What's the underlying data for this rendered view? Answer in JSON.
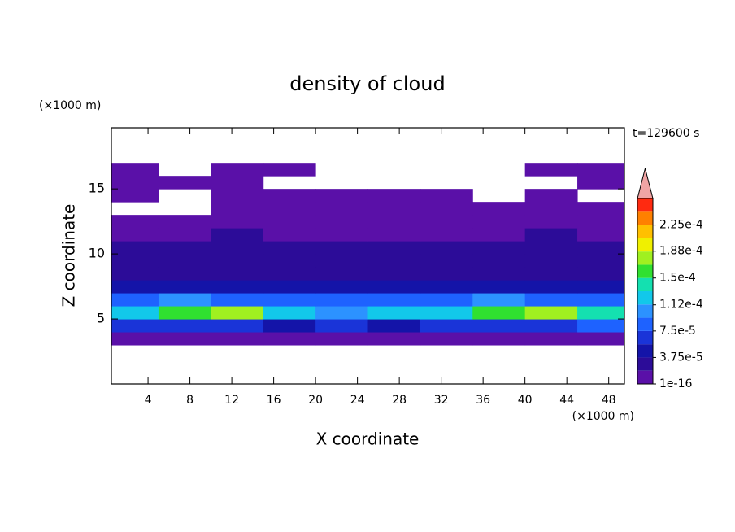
{
  "chart_data": {
    "type": "contour",
    "title": "density of cloud",
    "x_label": "X coordinate",
    "y_label": "Z coordinate",
    "x_unit": "(×1000 m)",
    "y_unit": "(×1000 m)",
    "annotation": "t=129600 s",
    "xlim": [
      0.5,
      49.5
    ],
    "xticks": [
      4,
      8,
      12,
      16,
      20,
      24,
      28,
      32,
      36,
      40,
      44,
      48
    ],
    "ylim": [
      0,
      19.7
    ],
    "yticks": [
      5,
      10,
      15
    ],
    "x_edges": [
      0,
      5,
      10,
      15,
      20,
      25,
      30,
      35,
      40,
      45,
      50
    ],
    "z_edges": [
      3,
      4,
      5,
      6,
      7,
      8,
      9,
      10,
      11,
      12,
      13,
      14,
      15,
      16,
      17
    ],
    "values": [
      [
        1e-05,
        1e-05,
        1e-05,
        1e-05,
        1e-05,
        1e-05,
        1e-05,
        1e-05,
        1e-05,
        1e-05
      ],
      [
        6e-05,
        7e-05,
        6e-05,
        5e-05,
        6e-05,
        5e-05,
        6e-05,
        7e-05,
        7e-05,
        8e-05
      ],
      [
        0.00013,
        0.00016,
        0.00017,
        0.00012,
        0.00011,
        0.00012,
        0.00013,
        0.00015,
        0.00017,
        0.00014
      ],
      [
        9e-05,
        0.0001,
        9e-05,
        8e-05,
        9e-05,
        8e-05,
        9e-05,
        0.0001,
        9e-05,
        8e-05
      ],
      [
        5e-05,
        5e-05,
        4e-05,
        4e-05,
        5e-05,
        4e-05,
        4e-05,
        5e-05,
        4e-05,
        4e-05
      ],
      [
        3e-05,
        3e-05,
        3e-05,
        2.5e-05,
        3e-05,
        3e-05,
        2.5e-05,
        3e-05,
        3e-05,
        3e-05
      ],
      [
        2.5e-05,
        2.5e-05,
        2e-05,
        2e-05,
        2.5e-05,
        2e-05,
        2e-05,
        2.5e-05,
        2.5e-05,
        3e-05
      ],
      [
        2e-05,
        2e-05,
        2e-05,
        2e-05,
        2e-05,
        2e-05,
        2e-05,
        2e-05,
        2e-05,
        2e-05
      ],
      [
        1.5e-05,
        1.5e-05,
        2e-05,
        1.5e-05,
        1.5e-05,
        1.5e-05,
        1.5e-05,
        1.5e-05,
        2e-05,
        1.5e-05
      ],
      [
        1e-05,
        1e-05,
        1e-05,
        1e-05,
        1e-05,
        1e-05,
        1e-05,
        1e-05,
        1e-05,
        1e-05
      ],
      [
        null,
        null,
        1e-05,
        1e-05,
        1e-05,
        1e-05,
        1e-05,
        1e-05,
        1e-05,
        1e-05
      ],
      [
        1e-05,
        null,
        1e-05,
        1e-05,
        1e-05,
        1e-05,
        1e-05,
        null,
        1e-05,
        null
      ],
      [
        1e-05,
        1e-05,
        1e-05,
        null,
        null,
        null,
        null,
        null,
        null,
        1e-05
      ],
      [
        1e-05,
        null,
        1e-05,
        1e-05,
        null,
        null,
        null,
        null,
        1e-05,
        1e-05
      ]
    ],
    "colorbar": {
      "levels": [
        1e-16,
        1.875e-05,
        3.75e-05,
        5.625e-05,
        7.5e-05,
        9.375e-05,
        0.0001125,
        0.00013125,
        0.00015,
        0.00016875,
        0.0001875,
        0.00020625,
        0.000225,
        0.00024375,
        0.0002625
      ],
      "colors": [
        "#5a10a8",
        "#2c0c98",
        "#1414a8",
        "#1a34d8",
        "#1e62ff",
        "#2c92ff",
        "#12c8ea",
        "#14e0b0",
        "#30e030",
        "#a0f020",
        "#f0f000",
        "#ffc000",
        "#ff8000",
        "#ff2a10"
      ],
      "extend_color": "#f0a4a4",
      "ticks": [
        1e-16,
        {
          "value": 3.75e-05,
          "label": "3.75e-5"
        },
        {
          "value": 7.5e-05,
          "label": "7.5e-5"
        },
        {
          "value": 0.000112,
          "label": "1.12e-4"
        },
        {
          "value": 0.00015,
          "label": "1.5e-4"
        },
        {
          "value": 0.000188,
          "label": "1.88e-4"
        },
        {
          "value": 0.000225,
          "label": "2.25e-4"
        }
      ]
    }
  }
}
